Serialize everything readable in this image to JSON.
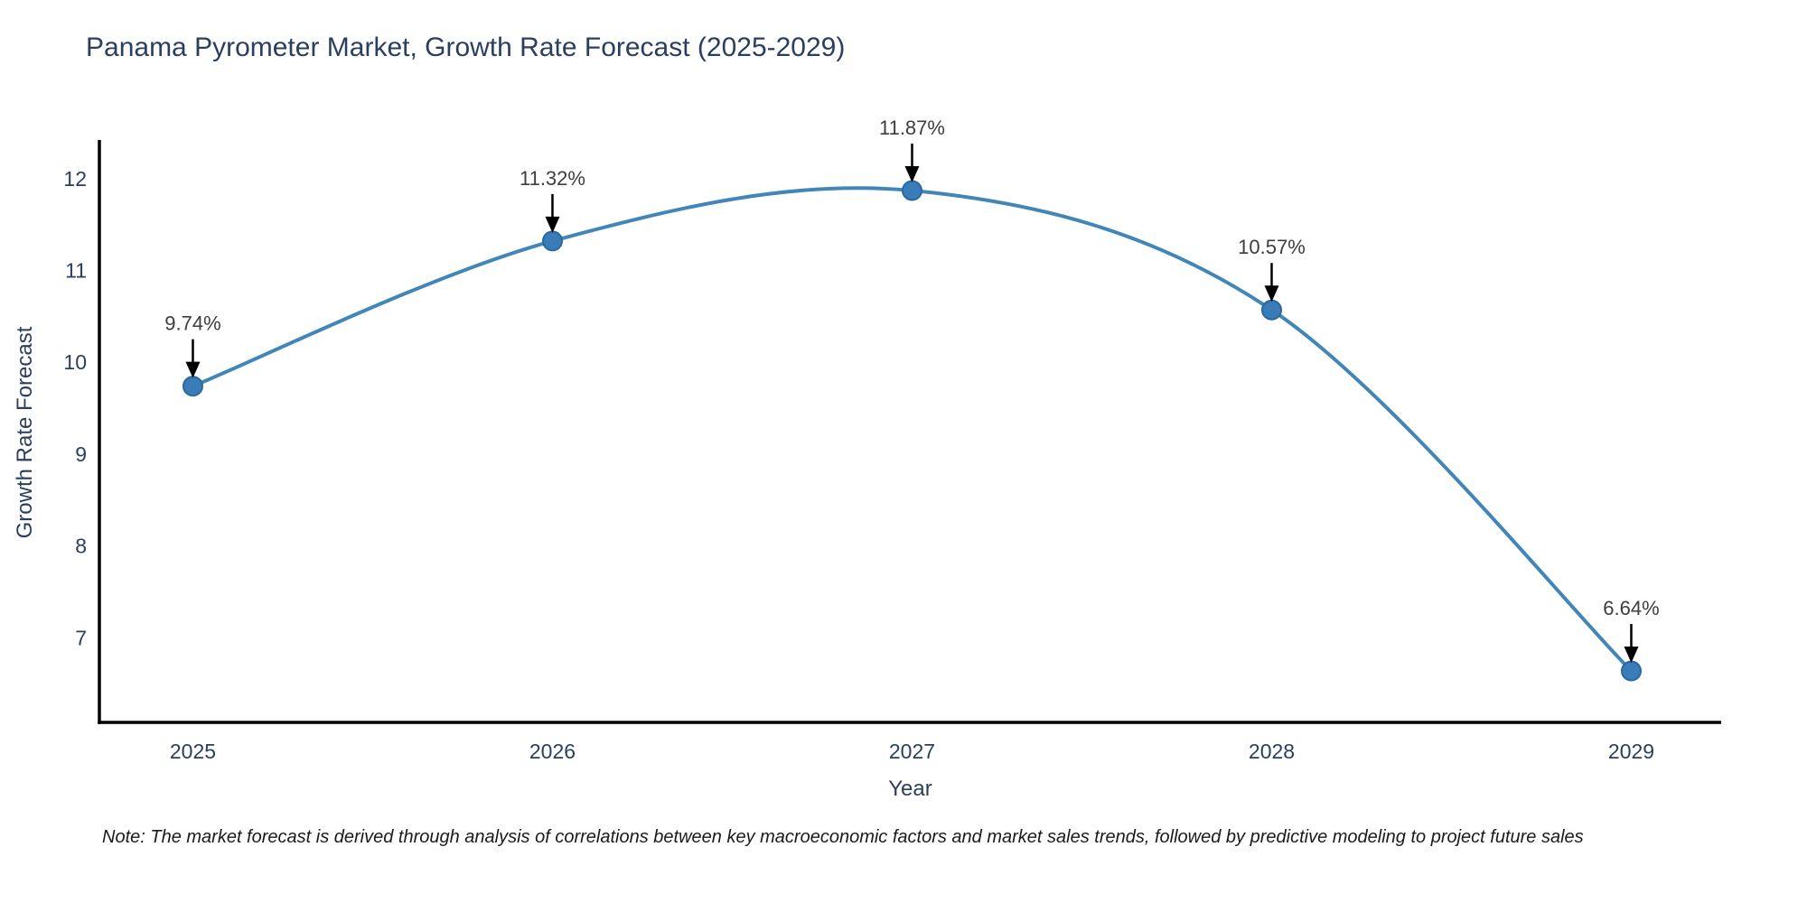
{
  "chart_data": {
    "type": "line",
    "title": "Panama Pyrometer Market, Growth Rate Forecast (2025-2029)",
    "xlabel": "Year",
    "ylabel": "Growth Rate Forecast",
    "x": [
      2025,
      2026,
      2027,
      2028,
      2029
    ],
    "values": [
      9.74,
      11.32,
      11.87,
      10.57,
      6.64
    ],
    "point_labels": [
      "9.74%",
      "11.32%",
      "11.87%",
      "10.57%",
      "6.64%"
    ],
    "xticks": [
      "2025",
      "2026",
      "2027",
      "2028",
      "2029"
    ],
    "yticks": [
      7,
      8,
      9,
      10,
      11,
      12
    ],
    "xlim": [
      2024.74,
      2029.25
    ],
    "ylim": [
      6.08,
      12.42
    ],
    "line_shape": "spline",
    "grid": false,
    "legend": "none",
    "colors": {
      "line": "#4286b8",
      "marker_fill": "#3a7cb8",
      "marker_edge": "#2a699f",
      "annotation_text": "#3d3d3d",
      "annotation_arrow": "#000000",
      "axis_line": "#000000",
      "title_text": "#2a3f5f",
      "tick_text": "#2a3f5f"
    }
  },
  "note": "Note: The market forecast is derived through analysis of correlations between key macroeconomic factors and market sales trends, followed by predictive modeling to project future sales"
}
